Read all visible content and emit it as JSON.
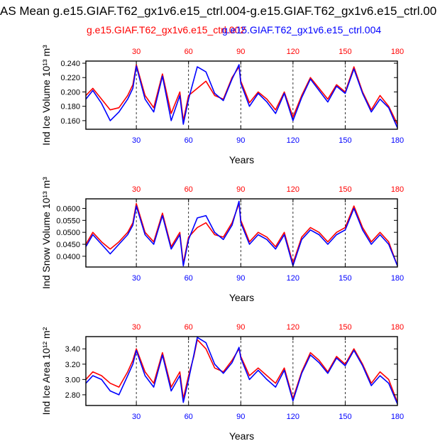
{
  "title": "AS Mean g.e15.GIAF.T62_gx1v6.e15_ctrl.004-g.e15.GIAF.T62_gx1v6.e15_ctrl.00",
  "legend": {
    "a": "g.e15.GIAF.T62_gx1v6.e15_ctrl.002",
    "b": "g.e15.GIAF.T62_gx1v6.e15_ctrl.004"
  },
  "colors": {
    "a": "#ff0000",
    "b": "#0000ff",
    "axis": "#000000",
    "grid": "#000000"
  },
  "chart_data": [
    {
      "type": "line",
      "ylabel": "Ind Ice Volume 10¹³ m³",
      "xlabel": "Years",
      "xlim": [
        1,
        180
      ],
      "ylim": [
        0.148,
        0.243
      ],
      "yticks": [
        0.16,
        0.18,
        0.2,
        0.22,
        0.24
      ],
      "yticklabels": [
        "0.160",
        "0.180",
        "0.200",
        "0.220",
        "0.240"
      ],
      "xticks": [
        30,
        60,
        90,
        120,
        150,
        180
      ],
      "xticklabels": [
        "30",
        "60",
        "90",
        "120",
        "150",
        "180"
      ],
      "series": [
        {
          "name": "g.e15.GIAF.T62_gx1v6.e15_ctrl.002",
          "color": "#ff0000",
          "x": [
            1,
            5,
            10,
            15,
            20,
            25,
            28,
            30,
            35,
            40,
            45,
            50,
            55,
            57,
            60,
            65,
            70,
            75,
            80,
            85,
            89,
            90,
            95,
            100,
            105,
            110,
            115,
            120,
            125,
            130,
            135,
            140,
            145,
            150,
            155,
            160,
            165,
            170,
            175,
            180
          ],
          "values": [
            0.195,
            0.205,
            0.19,
            0.175,
            0.178,
            0.195,
            0.21,
            0.238,
            0.195,
            0.178,
            0.225,
            0.17,
            0.2,
            0.16,
            0.195,
            0.205,
            0.215,
            0.195,
            0.19,
            0.22,
            0.235,
            0.215,
            0.185,
            0.2,
            0.19,
            0.175,
            0.2,
            0.165,
            0.195,
            0.22,
            0.205,
            0.19,
            0.21,
            0.2,
            0.235,
            0.2,
            0.175,
            0.195,
            0.18,
            0.155
          ]
        },
        {
          "name": "g.e15.GIAF.T62_gx1v6.e15_ctrl.004",
          "color": "#0000ff",
          "x": [
            1,
            5,
            10,
            15,
            20,
            25,
            28,
            30,
            35,
            40,
            45,
            50,
            55,
            57,
            60,
            65,
            70,
            75,
            80,
            85,
            89,
            90,
            95,
            100,
            105,
            110,
            115,
            120,
            125,
            130,
            135,
            140,
            145,
            150,
            155,
            160,
            165,
            170,
            175,
            180
          ],
          "values": [
            0.19,
            0.202,
            0.184,
            0.16,
            0.172,
            0.19,
            0.205,
            0.236,
            0.19,
            0.172,
            0.222,
            0.16,
            0.195,
            0.155,
            0.19,
            0.235,
            0.228,
            0.198,
            0.188,
            0.218,
            0.238,
            0.212,
            0.18,
            0.198,
            0.186,
            0.17,
            0.198,
            0.16,
            0.192,
            0.218,
            0.202,
            0.186,
            0.208,
            0.198,
            0.232,
            0.198,
            0.172,
            0.19,
            0.178,
            0.15
          ]
        }
      ]
    },
    {
      "type": "line",
      "ylabel": "Ind Snow Volume 10¹³ m³",
      "xlabel": "Years",
      "xlim": [
        1,
        180
      ],
      "ylim": [
        0.0355,
        0.064
      ],
      "yticks": [
        0.04,
        0.045,
        0.05,
        0.055,
        0.06
      ],
      "yticklabels": [
        "0.0400",
        "0.0450",
        "0.0500",
        "0.0550",
        "0.0600"
      ],
      "xticks": [
        30,
        60,
        90,
        120,
        150,
        180
      ],
      "xticklabels": [
        "30",
        "60",
        "90",
        "120",
        "150",
        "180"
      ],
      "series": [
        {
          "name": "g.e15.GIAF.T62_gx1v6.e15_ctrl.002",
          "color": "#ff0000",
          "x": [
            1,
            5,
            10,
            15,
            20,
            25,
            28,
            30,
            35,
            40,
            45,
            50,
            55,
            57,
            60,
            65,
            70,
            75,
            80,
            85,
            89,
            90,
            95,
            100,
            105,
            110,
            115,
            120,
            125,
            130,
            135,
            140,
            145,
            150,
            155,
            160,
            165,
            170,
            175,
            180
          ],
          "values": [
            0.045,
            0.05,
            0.046,
            0.043,
            0.046,
            0.05,
            0.054,
            0.062,
            0.05,
            0.046,
            0.058,
            0.044,
            0.05,
            0.037,
            0.048,
            0.052,
            0.054,
            0.049,
            0.048,
            0.054,
            0.062,
            0.055,
            0.046,
            0.05,
            0.048,
            0.044,
            0.05,
            0.037,
            0.048,
            0.052,
            0.05,
            0.046,
            0.05,
            0.052,
            0.061,
            0.052,
            0.046,
            0.05,
            0.046,
            0.036
          ]
        },
        {
          "name": "g.e15.GIAF.T62_gx1v6.e15_ctrl.004",
          "color": "#0000ff",
          "x": [
            1,
            5,
            10,
            15,
            20,
            25,
            28,
            30,
            35,
            40,
            45,
            50,
            55,
            57,
            60,
            65,
            70,
            75,
            80,
            85,
            89,
            90,
            95,
            100,
            105,
            110,
            115,
            120,
            125,
            130,
            135,
            140,
            145,
            150,
            155,
            160,
            165,
            170,
            175,
            180
          ],
          "values": [
            0.044,
            0.049,
            0.045,
            0.041,
            0.045,
            0.049,
            0.053,
            0.061,
            0.049,
            0.045,
            0.057,
            0.043,
            0.049,
            0.036,
            0.047,
            0.056,
            0.057,
            0.05,
            0.047,
            0.053,
            0.063,
            0.054,
            0.045,
            0.049,
            0.047,
            0.043,
            0.049,
            0.036,
            0.047,
            0.051,
            0.049,
            0.045,
            0.049,
            0.051,
            0.06,
            0.051,
            0.045,
            0.049,
            0.045,
            0.036
          ]
        }
      ]
    },
    {
      "type": "line",
      "ylabel": "Ind Ice Area 10¹² m²",
      "xlabel": "Years",
      "xlim": [
        1,
        180
      ],
      "ylim": [
        2.66,
        3.56
      ],
      "yticks": [
        2.8,
        3.0,
        3.2,
        3.4
      ],
      "yticklabels": [
        "2.80",
        "3.00",
        "3.20",
        "3.40"
      ],
      "xticks": [
        30,
        60,
        90,
        120,
        150,
        180
      ],
      "xticklabels": [
        "30",
        "60",
        "90",
        "120",
        "150",
        "180"
      ],
      "series": [
        {
          "name": "g.e15.GIAF.T62_gx1v6.e15_ctrl.002",
          "color": "#ff0000",
          "x": [
            1,
            5,
            10,
            15,
            20,
            25,
            28,
            30,
            35,
            40,
            45,
            50,
            55,
            57,
            60,
            63,
            65,
            70,
            75,
            80,
            85,
            89,
            90,
            95,
            100,
            105,
            110,
            115,
            120,
            125,
            130,
            135,
            140,
            145,
            150,
            155,
            160,
            165,
            170,
            175,
            180
          ],
          "values": [
            3.0,
            3.1,
            3.05,
            2.95,
            2.9,
            3.1,
            3.25,
            3.4,
            3.1,
            2.95,
            3.35,
            2.9,
            3.1,
            2.75,
            3.05,
            3.3,
            3.52,
            3.4,
            3.15,
            3.1,
            3.25,
            3.4,
            3.3,
            3.05,
            3.15,
            3.05,
            2.95,
            3.15,
            2.75,
            3.1,
            3.35,
            3.25,
            3.1,
            3.3,
            3.2,
            3.4,
            3.2,
            2.95,
            3.1,
            3.0,
            2.7
          ]
        },
        {
          "name": "g.e15.GIAF.T62_gx1v6.e15_ctrl.004",
          "color": "#0000ff",
          "x": [
            1,
            5,
            10,
            15,
            20,
            25,
            28,
            30,
            35,
            40,
            45,
            50,
            55,
            57,
            60,
            63,
            65,
            70,
            75,
            80,
            85,
            89,
            90,
            95,
            100,
            105,
            110,
            115,
            120,
            125,
            130,
            135,
            140,
            145,
            150,
            155,
            160,
            165,
            170,
            175,
            180
          ],
          "values": [
            2.95,
            3.05,
            3.0,
            2.85,
            2.8,
            3.05,
            3.2,
            3.38,
            3.05,
            2.9,
            3.32,
            2.85,
            3.05,
            2.7,
            3.0,
            3.32,
            3.55,
            3.48,
            3.2,
            3.08,
            3.22,
            3.42,
            3.28,
            3.0,
            3.12,
            3.0,
            2.9,
            3.12,
            2.72,
            3.08,
            3.32,
            3.22,
            3.08,
            3.28,
            3.18,
            3.38,
            3.18,
            2.92,
            3.05,
            2.95,
            2.68
          ]
        }
      ]
    }
  ]
}
